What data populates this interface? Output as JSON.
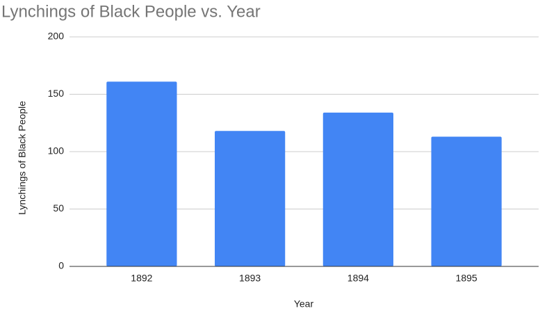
{
  "chart_data": {
    "type": "bar",
    "title": "Lynchings of Black People vs. Year",
    "x_label": "Year",
    "y_label": "Lynchings of Black People",
    "categories": [
      "1892",
      "1893",
      "1894",
      "1895"
    ],
    "values": [
      161,
      118,
      134,
      113
    ],
    "color": "#4285f4",
    "ylim": [
      0,
      200
    ],
    "yticks": [
      0,
      50,
      100,
      150,
      200
    ],
    "grid": true
  }
}
